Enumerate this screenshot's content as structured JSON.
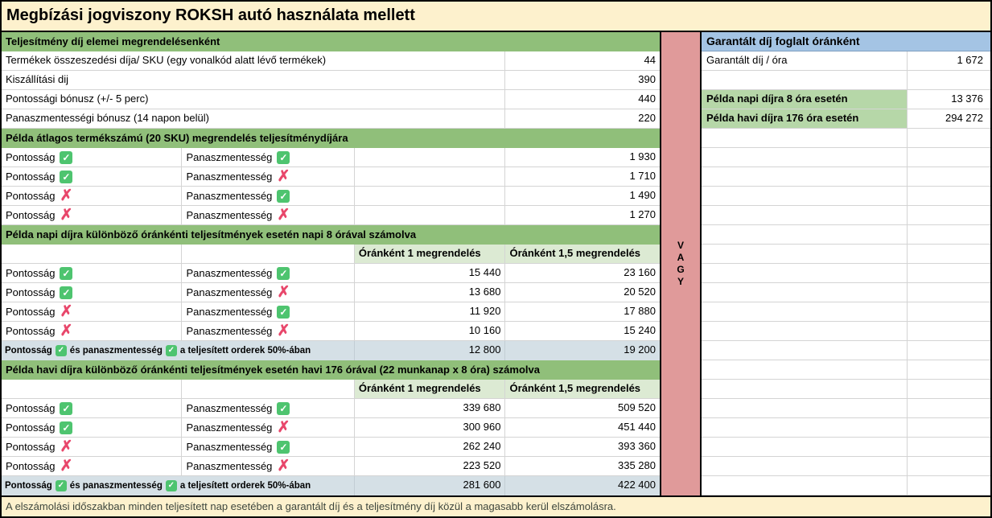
{
  "title": "Megbízási jogviszony ROKSH autó használata mellett",
  "labels": {
    "pontossag": "Pontosság",
    "panaszmentesseg": "Panaszmentesség"
  },
  "icons": {
    "check": "✓",
    "cross": "✗"
  },
  "vagy": "VAGY",
  "left_table": {
    "section1_header": "Teljesítmény díj elemei megrendelésenként",
    "fee_rows": [
      {
        "label": "Termékek összeszedési díja/ SKU (egy vonalkód alatt lévő termékek)",
        "value": "44"
      },
      {
        "label": "Kiszállítási dij",
        "value": "390"
      },
      {
        "label": "Pontossági bónusz (+/- 5 perc)",
        "value": "440"
      },
      {
        "label": "Panaszmentességi bónusz (14 napon belül)",
        "value": "220"
      }
    ],
    "section2_header": "Példa átlagos termékszámú (20 SKU) megrendelés teljesítménydíjára",
    "example_rows": [
      {
        "pontossag": true,
        "panaszmentesseg": true,
        "value": "1 930"
      },
      {
        "pontossag": true,
        "panaszmentesseg": false,
        "value": "1 710"
      },
      {
        "pontossag": false,
        "panaszmentesseg": true,
        "value": "1 490"
      },
      {
        "pontossag": false,
        "panaszmentesseg": false,
        "value": "1 270"
      }
    ],
    "daily": {
      "header": "Példa napi díjra különböző óránkénti teljesítmények esetén napi 8 órával számolva",
      "col1": "Óránként 1 megrendelés",
      "col2": "Óránként 1,5 megrendelés",
      "rows": [
        {
          "pontossag": true,
          "panaszmentesseg": true,
          "v1": "15 440",
          "v2": "23 160"
        },
        {
          "pontossag": true,
          "panaszmentesseg": false,
          "v1": "13 680",
          "v2": "20 520"
        },
        {
          "pontossag": false,
          "panaszmentesseg": true,
          "v1": "11 920",
          "v2": "17 880"
        },
        {
          "pontossag": false,
          "panaszmentesseg": false,
          "v1": "10 160",
          "v2": "15 240"
        }
      ],
      "special": {
        "v1": "12 800",
        "v2": "19 200"
      }
    },
    "monthly": {
      "header": "Példa havi díjra különböző óránkénti teljesítmények esetén havi 176 órával (22 munkanap x 8 óra) számolva",
      "col1": "Óránként 1 megrendelés",
      "col2": "Óránként 1,5 megrendelés",
      "rows": [
        {
          "pontossag": true,
          "panaszmentesseg": true,
          "v1": "339 680",
          "v2": "509 520"
        },
        {
          "pontossag": true,
          "panaszmentesseg": false,
          "v1": "300 960",
          "v2": "451 440"
        },
        {
          "pontossag": false,
          "panaszmentesseg": true,
          "v1": "262 240",
          "v2": "393 360"
        },
        {
          "pontossag": false,
          "panaszmentesseg": false,
          "v1": "223 520",
          "v2": "335 280"
        }
      ],
      "special": {
        "v1": "281 600",
        "v2": "422 400"
      }
    },
    "special_label": {
      "check1": true,
      "mid": "és panaszmentesség",
      "check2": true,
      "post": "a teljesített orderek 50%-ában"
    }
  },
  "right_table": {
    "header": "Garantált díj foglalt óránként",
    "rate_row": {
      "label": "Garantált díj / óra",
      "value": "1 672"
    },
    "daily_row": {
      "label": "Példa napi díjra 8 óra esetén",
      "value": "13 376"
    },
    "monthly_row": {
      "label": "Példa havi díjra 176 óra esetén",
      "value": "294 272"
    }
  },
  "footer": "A elszámolási időszakban minden teljesített nap esetében a garantált díj és a teljesítmény díj közül a magasabb kerül elszámolásra.",
  "colors": {
    "cream": "#fdf1cd",
    "section_green": "#90bf7a",
    "column_header_green": "#dcead3",
    "right_label_green": "#b6d7a8",
    "header_blue": "#a4c4e4",
    "special_row_blue": "#d5e0e6",
    "vagy_pink": "#e09a9a",
    "check_green": "#4ec46f",
    "cross_red": "#e8476b"
  }
}
